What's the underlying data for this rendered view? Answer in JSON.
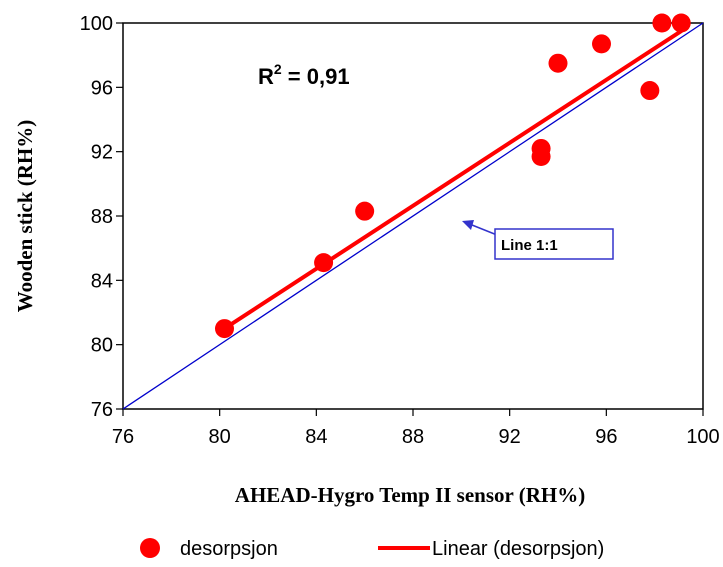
{
  "chart_data": {
    "type": "scatter",
    "xlabel": "AHEAD-Hygro Temp II sensor (RH%)",
    "ylabel": "Wooden stick (RH%)",
    "xlim": [
      76,
      100
    ],
    "ylim": [
      76,
      100
    ],
    "x_ticks": [
      "76",
      "80",
      "84",
      "88",
      "92",
      "96",
      "100"
    ],
    "y_ticks": [
      "76",
      "80",
      "84",
      "88",
      "92",
      "96",
      "100"
    ],
    "grid": false,
    "legend_position": "bottom",
    "series": [
      {
        "name": "desorpsjon",
        "type": "scatter",
        "color": "#ff0000",
        "x": [
          80.2,
          84.3,
          86.0,
          93.3,
          93.3,
          94.0,
          95.8,
          97.8,
          98.3,
          99.1
        ],
        "y": [
          81.0,
          85.1,
          88.3,
          92.2,
          91.7,
          97.5,
          98.7,
          95.8,
          100.0,
          100.0
        ]
      },
      {
        "name": "Linear (desorpsjon)",
        "type": "line",
        "color": "#ff0000",
        "x": [
          80.2,
          99.1
        ],
        "y": [
          81.0,
          99.5
        ]
      },
      {
        "type": "line",
        "color": "#0000cc",
        "x": [
          76,
          100
        ],
        "y": [
          76,
          100
        ]
      }
    ],
    "annotations": {
      "r_squared": {
        "prefix": "R",
        "sup": "2",
        "suffix": " = 0,91"
      },
      "callout": "Line 1:1"
    }
  }
}
